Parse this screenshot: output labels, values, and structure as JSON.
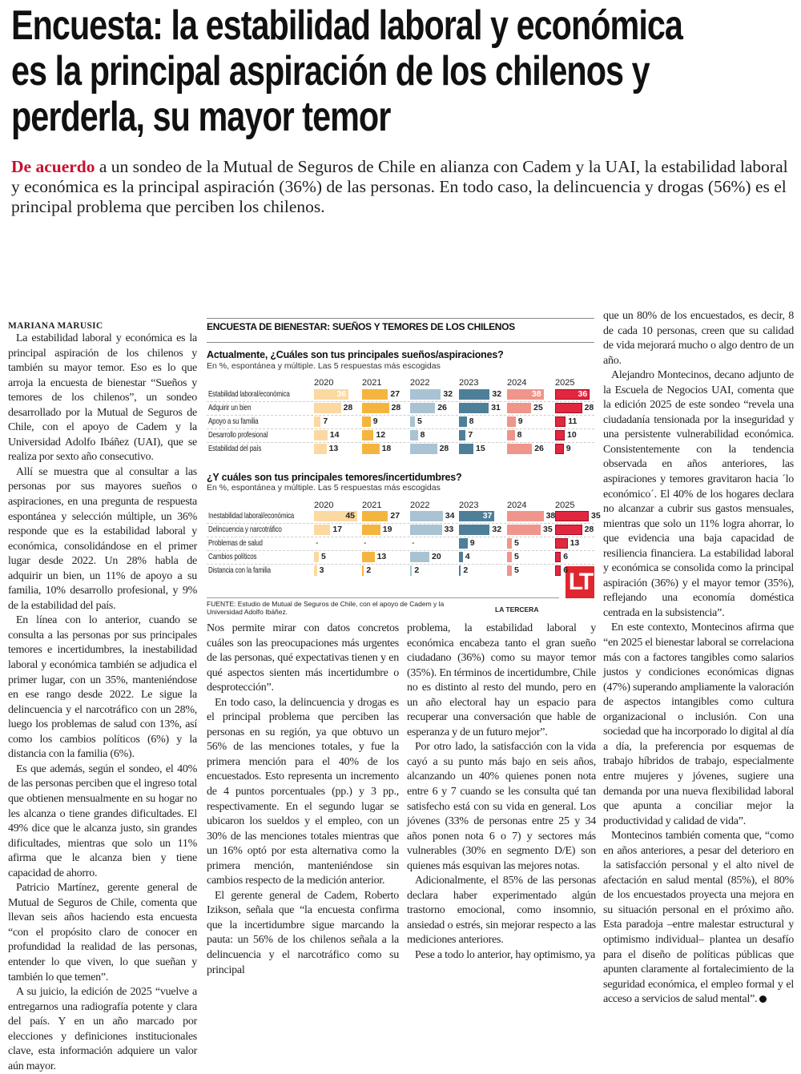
{
  "headline": [
    "Encuesta: la estabilidad laboral y económica",
    "es la principal aspiración de los chilenos y",
    "perderla, su mayor temor"
  ],
  "lede": {
    "kicker": "De acuerdo",
    "text": " a un sondeo de la Mutual de Seguros de Chile en alianza con Cadem y la UAI, la estabilidad laboral y económica es la principal aspiración (36%) de las personas. En todo caso, la delincuencia y drogas (56%) es el principal problema que perciben los chilenos."
  },
  "byline": "MARIANA MARUSIC",
  "columns": {
    "c1": [
      "La estabilidad laboral y económica es la principal aspiración de los chilenos y también su mayor temor. Eso es lo que arroja la encuesta de bienestar “Sueños y temores de los chilenos”, un sondeo desarrollado por la Mutual de Seguros de Chile, con el apoyo de Cadem y la Universidad Adolfo Ibáñez (UAI), que se realiza por sexto año consecutivo.",
      "Allí se muestra que al consultar a las personas por sus mayores sueños o aspiraciones, en una pregunta de respuesta espontánea y selección múltiple, un 36% responde que es la estabilidad laboral y económica, consolidándose en el primer lugar desde 2022. Un 28% habla de adquirir un bien, un 11% de apoyo a su familia, 10% desarrollo profesional, y 9% de la estabilidad del país.",
      "En línea con lo anterior, cuando se consulta a las personas por sus principales temores e incertidumbres, la inestabilidad laboral y económica también se adjudica el primer lugar, con un 35%, manteniéndose en ese rango desde 2022. Le sigue la delincuencia y el narcotráfico con un 28%, luego los problemas de salud con 13%, así como los cambios políticos (6%) y la distancia con la familia (6%).",
      "Es que además, según el sondeo, el 40% de las personas perciben que el ingreso total que obtienen mensualmente en su hogar no les alcanza o tiene grandes dificultades. El 49% dice que le alcanza justo, sin grandes dificultades, mientras que solo un 11% afirma que le alcanza bien y tiene capacidad de ahorro.",
      "Patricio Martínez, gerente general de Mutual de Seguros de Chile, comenta que llevan seis años haciendo esta encuesta “con el propósito claro de conocer en profundidad la realidad de las personas, entender lo que viven, lo que sueñan y también lo que temen”.",
      "A su juicio, la edición de 2025 “vuelve a entregarnos una radiografía potente y clara del país. Y en un año marcado por elecciones y definiciones institucionales clave, esta información adquiere un valor aún mayor."
    ],
    "c2": [
      "Nos permite mirar con datos concretos cuáles son las preocupaciones más urgentes de las personas, qué expectativas tienen y en qué aspectos sienten más incertidumbre o desprotección”.",
      "En todo caso, la delincuencia y drogas es el principal problema que perciben las personas en su región, ya que obtuvo un 56% de las menciones totales, y fue la primera mención para el 40% de los encuestados. Esto representa un incremento de 4 puntos porcentuales (pp.) y 3 pp., respectivamente. En el segundo lugar se ubicaron los sueldos y el empleo, con un 30% de las menciones totales mientras que un 16% optó por esta alternativa como la primera mención, manteniéndose sin cambios respecto de la medición anterior.",
      "El gerente general de Cadem, Roberto Izikson, señala que “la encuesta confirma que la incertidumbre sigue marcando la pauta: un 56% de los chilenos señala a la delincuencia y el narcotráfico como su principal"
    ],
    "c3": [
      "problema, la estabilidad laboral y económica encabeza tanto el gran sueño ciudadano (36%) como su mayor temor (35%). En términos de incertidumbre, Chile no es distinto al resto del mundo, pero en un año electoral hay un espacio para recuperar una conversación que hable de esperanza y de un futuro mejor”.",
      "Por otro lado, la satisfacción con la vida cayó a su punto más bajo en seis años, alcanzando un 40% quienes ponen nota entre 6 y 7 cuando se les consulta qué tan satisfecho está con su vida en general. Los jóvenes (33% de personas entre 25 y 34 años ponen nota 6 o 7) y sectores más vulnerables (30% en segmento D/E) son quienes más esquivan las mejores notas.",
      "Adicionalmente, el 85% de las personas declara haber experimentado algún trastorno emocional, como insomnio, ansiedad o estrés, sin mejorar respecto a las mediciones anteriores.",
      "Pese a todo lo anterior, hay optimismo, ya"
    ],
    "c4": [
      "que un 80% de los encuestados, es decir, 8 de cada 10 personas, creen que su calidad de vida mejorará mucho o algo dentro de un año.",
      "Alejandro Montecinos, decano adjunto de la Escuela de Negocios UAI, comenta que la edición 2025 de este sondeo “revela una ciudadanía tensionada por la inseguridad y una persistente vulnerabilidad económica. Consistentemente con la tendencia observada en años anteriores, las aspiraciones y temores gravitaron hacia ´lo económico´. El 40% de los hogares declara no alcanzar a cubrir sus gastos mensuales, mientras que solo un 11% logra ahorrar, lo que evidencia una baja capacidad de resiliencia financiera. La estabilidad laboral y económica se consolida como la principal aspiración (36%) y el mayor temor (35%), reflejando una economía doméstica centrada en la subsistencia”.",
      "En este contexto, Montecinos afirma que “en 2025 el bienestar laboral se correlaciona más con a factores tangibles como salarios justos y condiciones económicas dignas (47%) superando ampliamente la valoración de aspectos intangibles como cultura organizacional o inclusión. Con una sociedad que ha incorporado lo digital al día a día, la preferencia por esquemas de trabajo híbridos de trabajo, especialmente entre mujeres y jóvenes, sugiere una demanda por una nueva flexibilidad laboral que apunta a conciliar mejor la productividad y calidad de vida”.",
      "Montecinos también comenta que, “como en años anteriores, a pesar del deterioro en la satisfacción personal y el alto nivel de afectación en salud mental (85%), el 80% de los encuestados proyecta una mejora en su situación personal en el próximo año. Esta paradoja –entre malestar estructural y optimismo individual– plantea un desafío para el diseño de políticas públicas que apunten claramente al fortalecimiento de la seguridad económica, el empleo formal y el acceso a servicios de salud mental”."
    ]
  },
  "graphic": {
    "title": "ENCUESTA DE BIENESTAR: SUEÑOS Y TEMORES DE LOS CHILENOS",
    "source": "FUENTE: Estudio de Mutual de Seguros de Chile, con el apoyo de Cadem y la Universidad Adolfo Ibáñez.",
    "brand": "LA TERCERA",
    "logo": "LT",
    "missing_mark": "-"
  },
  "chart_data": [
    {
      "type": "bar",
      "title": "Actualmente, ¿Cuáles son tus principales sueños/aspiraciones?",
      "subtitle": "En %, espontánea y múltiple. Las 5 respuestas más escogidas",
      "categories": [
        "Estabilidad laboral/económica",
        "Adquirir un bien",
        "Apoyo a su familia",
        "Desarrollo profesional",
        "Estabilidad del país"
      ],
      "series": [
        {
          "name": "2020",
          "color": "#fcd9a0",
          "values": [
            36,
            28,
            7,
            14,
            13
          ]
        },
        {
          "name": "2021",
          "color": "#f4b53f",
          "values": [
            27,
            28,
            9,
            12,
            18
          ]
        },
        {
          "name": "2022",
          "color": "#a9c3d3",
          "values": [
            32,
            26,
            5,
            8,
            28
          ]
        },
        {
          "name": "2023",
          "color": "#4e7f99",
          "values": [
            32,
            31,
            8,
            7,
            15
          ]
        },
        {
          "name": "2024",
          "color": "#f0958c",
          "values": [
            38,
            25,
            9,
            8,
            26
          ]
        },
        {
          "name": "2025",
          "color": "#e1273f",
          "values": [
            36,
            28,
            11,
            10,
            9
          ]
        }
      ]
    },
    {
      "type": "bar",
      "title": "¿Y cuáles son tus principales temores/incertidumbres?",
      "subtitle": "En %, espontánea y múltiple. Las 5 respuestas más escogidas",
      "categories": [
        "Inestabilidad laboral/económica",
        "Delincuencia y narcotráfico",
        "Problemas de salud",
        "Cambios políticos",
        "Distancia con la familia"
      ],
      "series": [
        {
          "name": "2020",
          "color": "#fcd9a0",
          "values": [
            45,
            17,
            null,
            5,
            3
          ]
        },
        {
          "name": "2021",
          "color": "#f4b53f",
          "values": [
            27,
            19,
            null,
            13,
            2
          ]
        },
        {
          "name": "2022",
          "color": "#a9c3d3",
          "values": [
            34,
            33,
            null,
            20,
            2
          ]
        },
        {
          "name": "2023",
          "color": "#4e7f99",
          "values": [
            37,
            32,
            9,
            4,
            2
          ]
        },
        {
          "name": "2024",
          "color": "#f0958c",
          "values": [
            38,
            35,
            5,
            5,
            5
          ]
        },
        {
          "name": "2025",
          "color": "#e1273f",
          "values": [
            35,
            28,
            13,
            6,
            6
          ]
        }
      ]
    }
  ]
}
